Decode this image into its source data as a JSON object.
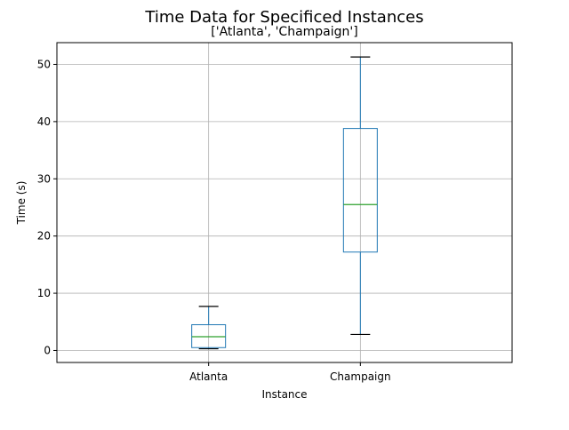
{
  "chart_data": {
    "type": "box",
    "title": "Time Data for Specificed Instances",
    "subtitle": "['Atlanta', 'Champaign']",
    "xlabel": "Instance",
    "ylabel": "Time (s)",
    "ylim": [
      -2.1,
      53.8
    ],
    "yticks": [
      0,
      10,
      20,
      30,
      40,
      50
    ],
    "categories": [
      "Atlanta",
      "Champaign"
    ],
    "boxes": [
      {
        "category": "Atlanta",
        "whisker_low": 0.3,
        "q1": 0.5,
        "median": 2.4,
        "q3": 4.5,
        "whisker_high": 7.7
      },
      {
        "category": "Champaign",
        "whisker_low": 2.8,
        "q1": 17.2,
        "median": 25.5,
        "q3": 38.8,
        "whisker_high": 51.3
      }
    ],
    "grid": true,
    "colors": {
      "box": "#1f77b4",
      "median": "#2ca02c",
      "whisker_cap": "#000000",
      "grid": "#b0b0b0",
      "axis": "#000000"
    }
  }
}
